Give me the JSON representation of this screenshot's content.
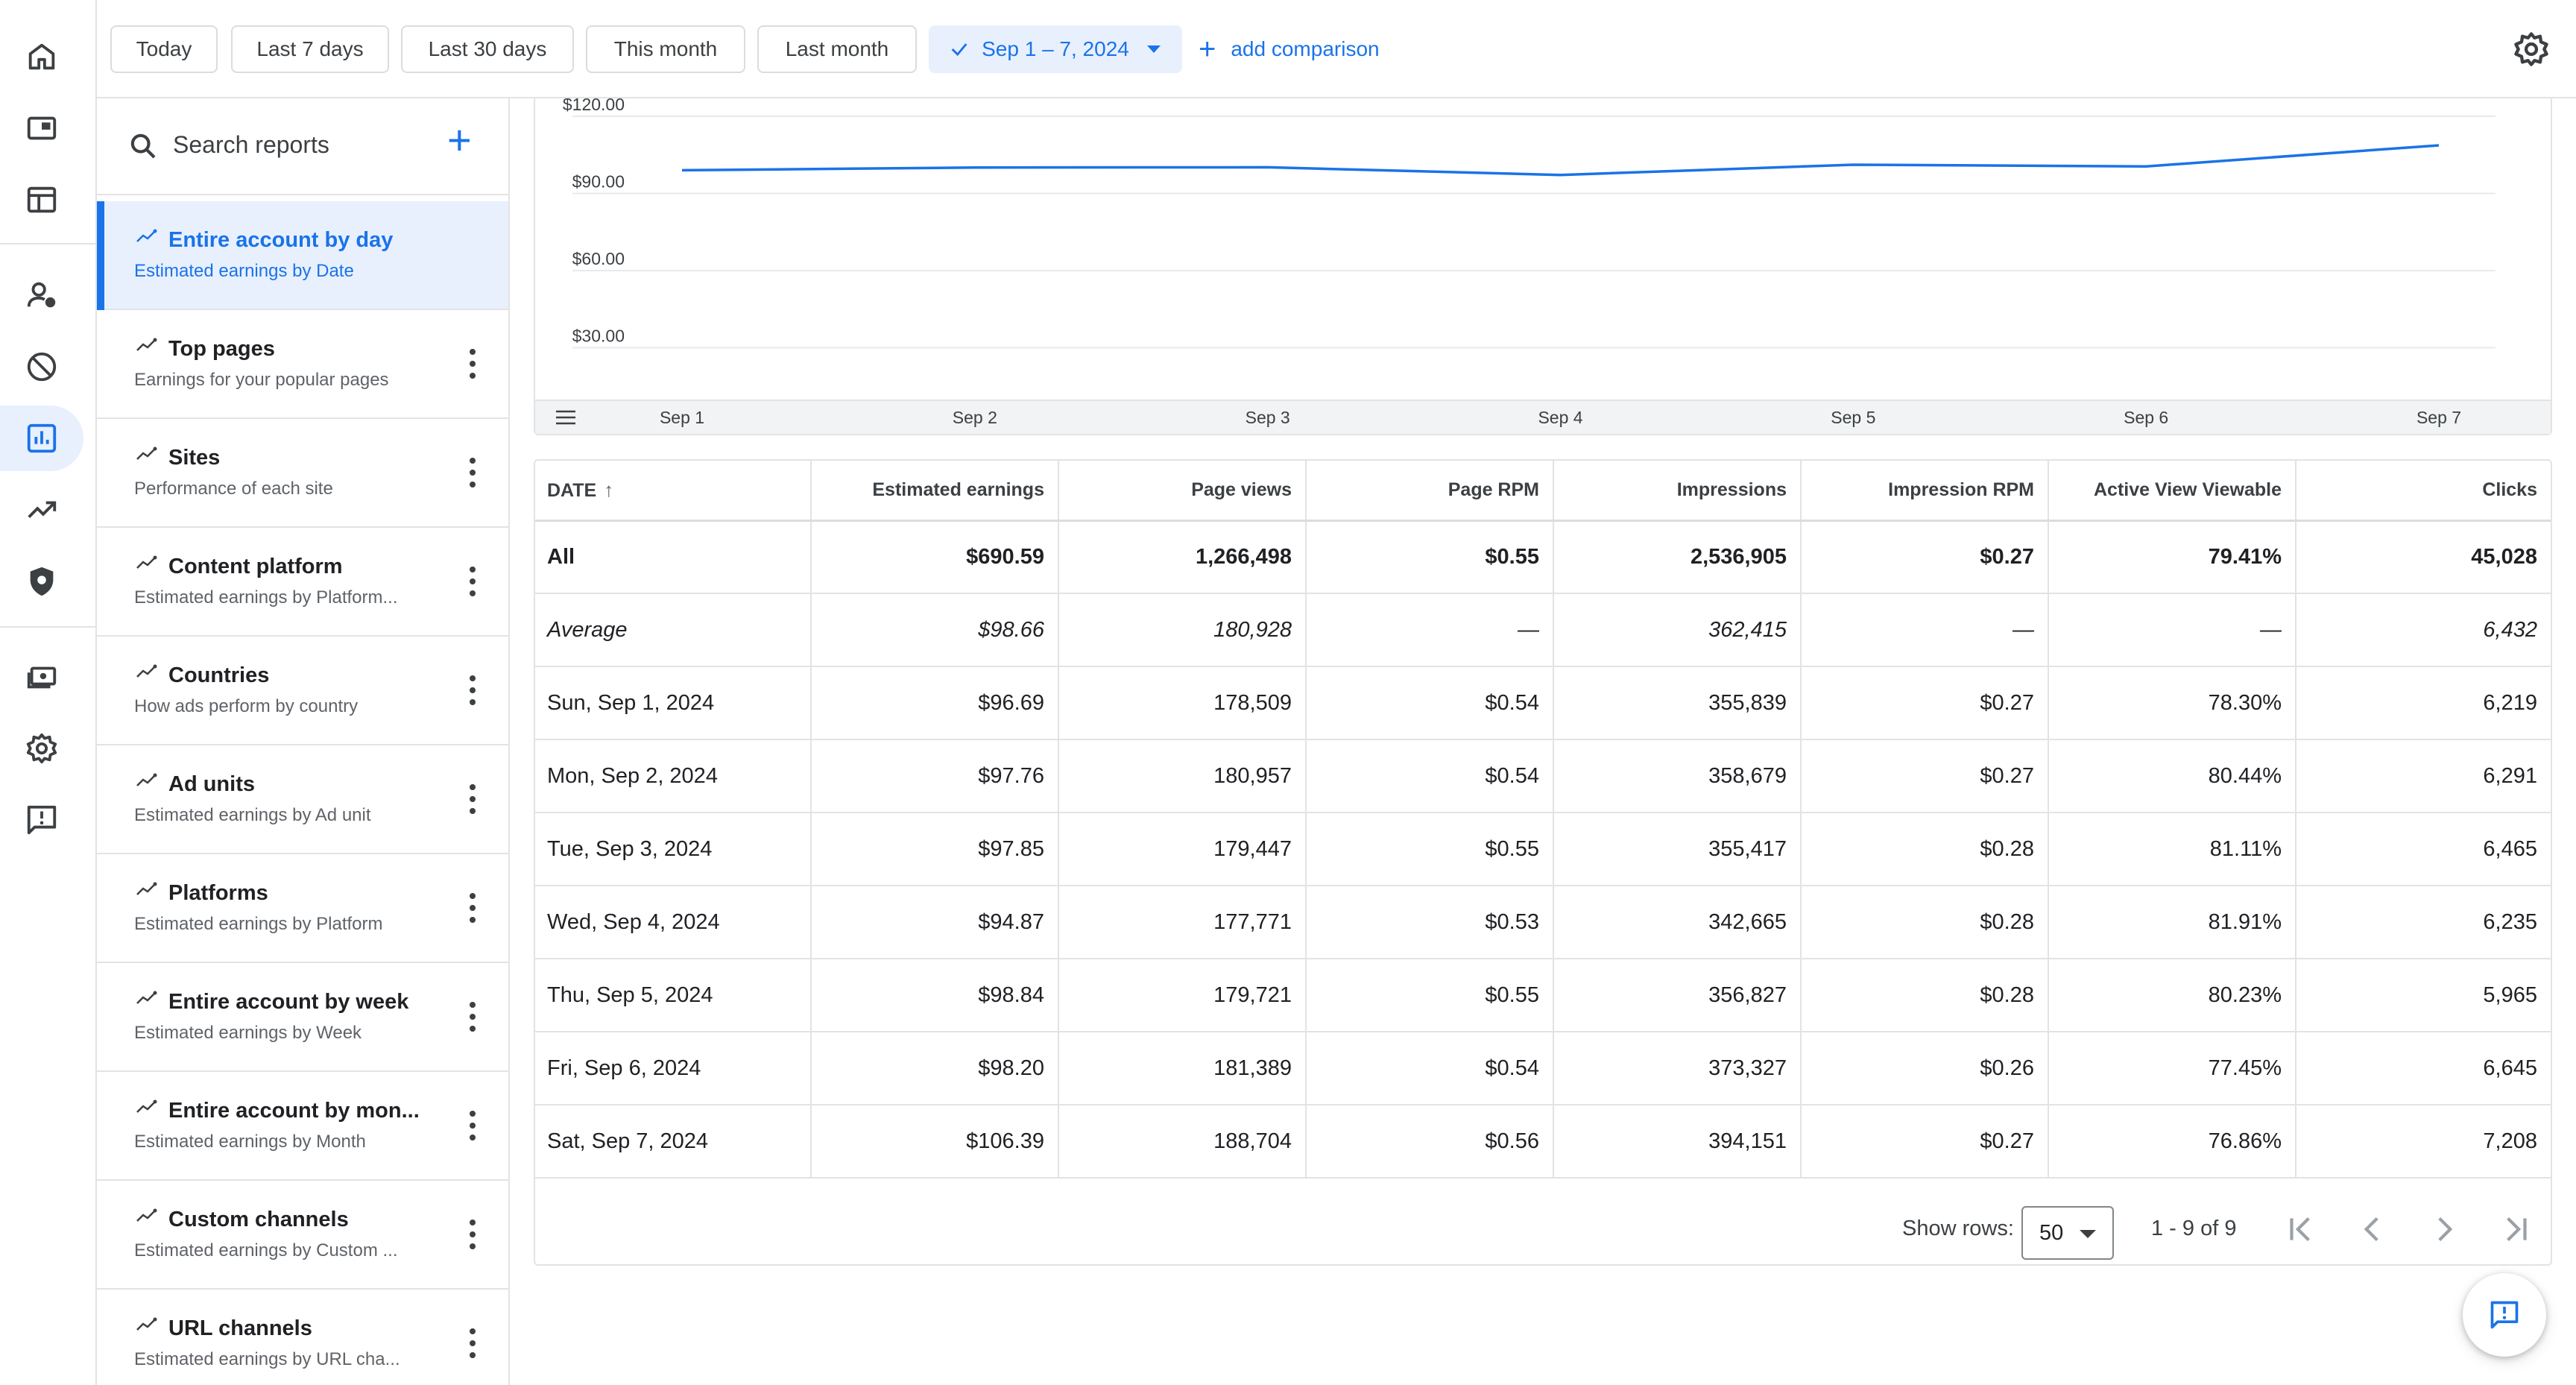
{
  "date_filters": {
    "today": "Today",
    "last7": "Last 7 days",
    "last30": "Last 30 days",
    "this_month": "This month",
    "last_month": "Last month",
    "selected_range": "Sep 1 – 7, 2024",
    "add_comparison": "add comparison"
  },
  "search": {
    "placeholder": "Search reports"
  },
  "reports": [
    {
      "title": "Entire account by day",
      "subtitle": "Estimated earnings by Date",
      "active": true
    },
    {
      "title": "Top pages",
      "subtitle": "Earnings for your popular pages"
    },
    {
      "title": "Sites",
      "subtitle": "Performance of each site"
    },
    {
      "title": "Content platform",
      "subtitle": "Estimated earnings by Platform..."
    },
    {
      "title": "Countries",
      "subtitle": "How ads perform by country"
    },
    {
      "title": "Ad units",
      "subtitle": "Estimated earnings by Ad unit"
    },
    {
      "title": "Platforms",
      "subtitle": "Estimated earnings by Platform"
    },
    {
      "title": "Entire account by week",
      "subtitle": "Estimated earnings by Week"
    },
    {
      "title": "Entire account by mon...",
      "subtitle": "Estimated earnings by Month"
    },
    {
      "title": "Custom channels",
      "subtitle": "Estimated earnings by Custom ..."
    },
    {
      "title": "URL channels",
      "subtitle": "Estimated earnings by URL cha..."
    }
  ],
  "rail_icons": [
    "home-icon",
    "ads-icon",
    "sites-icon",
    "account-icon",
    "block-icon",
    "reports-icon",
    "optimization-icon",
    "privacy-icon",
    "payments-icon",
    "settings-icon",
    "feedback-icon"
  ],
  "chart_data": {
    "type": "line",
    "x": [
      "Sep 1",
      "Sep 2",
      "Sep 3",
      "Sep 4",
      "Sep 5",
      "Sep 6",
      "Sep 7"
    ],
    "series": [
      {
        "values": [
          96.69,
          97.76,
          97.85,
          94.87,
          98.84,
          98.2,
          106.39
        ]
      }
    ],
    "yticks": [
      "$120.00",
      "$90.00",
      "$60.00",
      "$30.00"
    ],
    "ylim": [
      0,
      120
    ],
    "grid": true,
    "line_color": "#1a73e8"
  },
  "table": {
    "headers": [
      "DATE",
      "Estimated earnings",
      "Page views",
      "Page RPM",
      "Impressions",
      "Impression RPM",
      "Active View Viewable",
      "Clicks"
    ],
    "rows": [
      [
        "All",
        "$690.59",
        "1,266,498",
        "$0.55",
        "2,536,905",
        "$0.27",
        "79.41%",
        "45,028"
      ],
      [
        "Average",
        "$98.66",
        "180,928",
        "—",
        "362,415",
        "—",
        "—",
        "6,432"
      ],
      [
        "Sun, Sep 1, 2024",
        "$96.69",
        "178,509",
        "$0.54",
        "355,839",
        "$0.27",
        "78.30%",
        "6,219"
      ],
      [
        "Mon, Sep 2, 2024",
        "$97.76",
        "180,957",
        "$0.54",
        "358,679",
        "$0.27",
        "80.44%",
        "6,291"
      ],
      [
        "Tue, Sep 3, 2024",
        "$97.85",
        "179,447",
        "$0.55",
        "355,417",
        "$0.28",
        "81.11%",
        "6,465"
      ],
      [
        "Wed, Sep 4, 2024",
        "$94.87",
        "177,771",
        "$0.53",
        "342,665",
        "$0.28",
        "81.91%",
        "6,235"
      ],
      [
        "Thu, Sep 5, 2024",
        "$98.84",
        "179,721",
        "$0.55",
        "356,827",
        "$0.28",
        "80.23%",
        "5,965"
      ],
      [
        "Fri, Sep 6, 2024",
        "$98.20",
        "181,389",
        "$0.54",
        "373,327",
        "$0.26",
        "77.45%",
        "6,645"
      ],
      [
        "Sat, Sep 7, 2024",
        "$106.39",
        "188,704",
        "$0.56",
        "394,151",
        "$0.27",
        "76.86%",
        "7,208"
      ]
    ]
  },
  "pager": {
    "show_rows_label": "Show rows:",
    "rows_value": "50",
    "range": "1 - 9 of 9"
  },
  "colors": {
    "accent": "#1a73e8",
    "active_bg": "#e8f0fe",
    "border": "#e3e3e3"
  }
}
